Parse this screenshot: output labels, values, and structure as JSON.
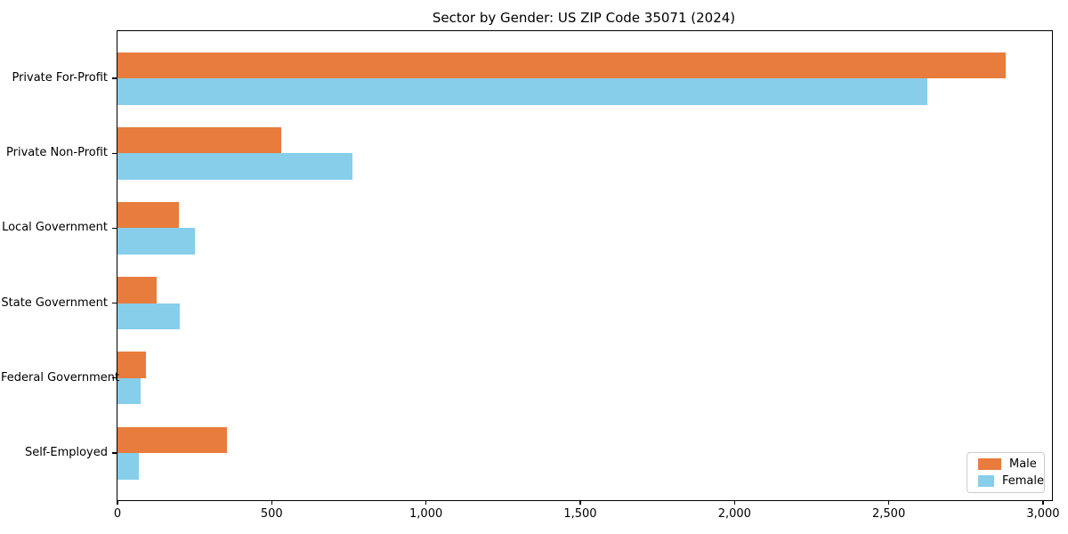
{
  "title": "Sector by Gender: US ZIP Code 35071 (2024)",
  "chart_data": {
    "type": "bar",
    "orientation": "horizontal",
    "title": "Sector by Gender: US ZIP Code 35071 (2024)",
    "categories": [
      "Private For-Profit",
      "Private Non-Profit",
      "Local Government",
      "State Government",
      "Federal Government",
      "Self-Employed"
    ],
    "series": [
      {
        "name": "Male",
        "color": "#E87C3C",
        "values": [
          2880,
          530,
          200,
          126,
          92,
          354
        ]
      },
      {
        "name": "Female",
        "color": "#87CEEB",
        "values": [
          2625,
          760,
          252,
          202,
          75,
          70
        ]
      }
    ],
    "xlim": [
      0,
      3029
    ],
    "x_ticks": [
      0,
      500,
      1000,
      1500,
      2000,
      2500,
      3000
    ],
    "x_tick_labels": [
      "0",
      "500",
      "1,000",
      "1,500",
      "2,000",
      "2,500",
      "3,000"
    ],
    "xlabel": "",
    "ylabel": "",
    "grid": false,
    "legend_position": "lower right"
  }
}
